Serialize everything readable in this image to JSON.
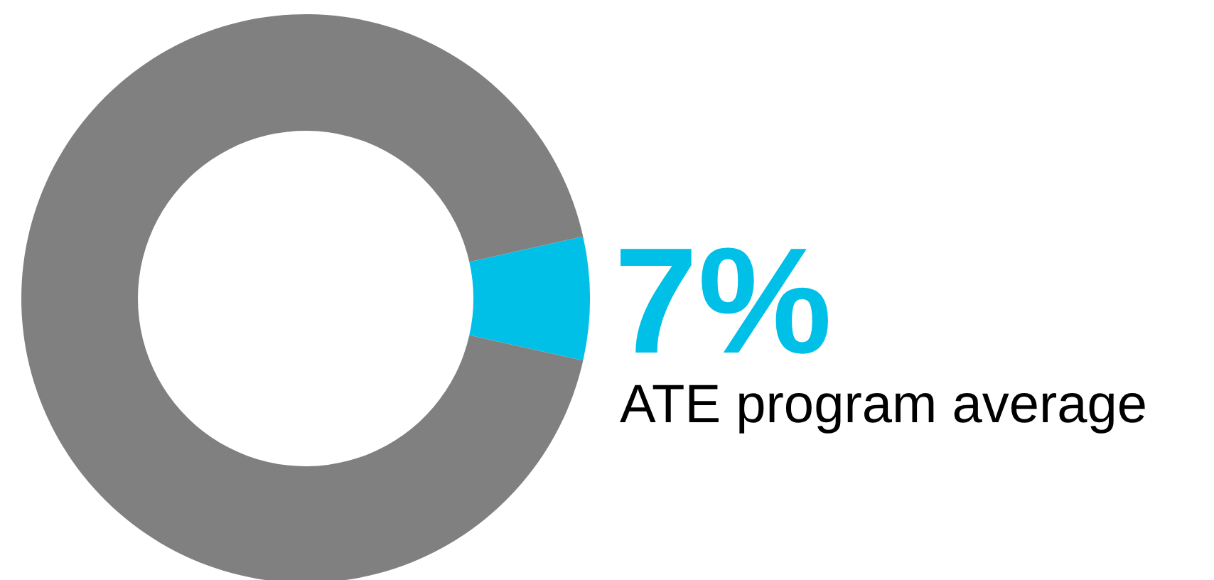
{
  "chart_data": {
    "type": "donut",
    "categories": [
      null,
      null
    ],
    "values": [
      7,
      93
    ],
    "colors": [
      "#00c0e8",
      "#808080"
    ],
    "value_labels": [
      "7%",
      null
    ],
    "annotations": [
      "ATE program average"
    ]
  }
}
